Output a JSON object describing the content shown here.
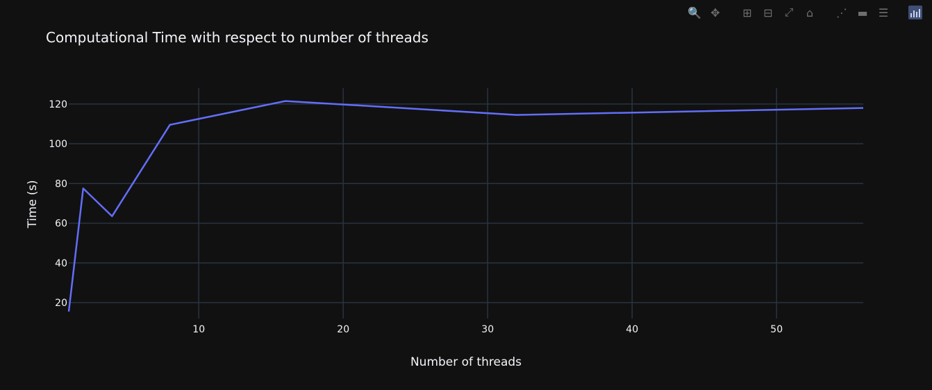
{
  "title": "Computational Time with respect to number of threads",
  "modebar": {
    "buttons": [
      {
        "name": "zoom-icon",
        "glyph": "🔍"
      },
      {
        "name": "pan-icon",
        "glyph": "✥"
      },
      {
        "name": "zoom-in-icon",
        "glyph": "⊞"
      },
      {
        "name": "zoom-out-icon",
        "glyph": "⊟"
      },
      {
        "name": "autoscale-icon",
        "glyph": "⤢"
      },
      {
        "name": "reset-axes-icon",
        "glyph": "⌂"
      },
      {
        "name": "spike-lines-icon",
        "glyph": "⋰"
      },
      {
        "name": "hover-closest-icon",
        "glyph": "▬"
      },
      {
        "name": "hover-compare-icon",
        "glyph": "☰"
      },
      {
        "name": "plotly-logo-icon",
        "glyph": ""
      }
    ]
  },
  "colors": {
    "background": "#111111",
    "grid": "#283442",
    "line": "#636efa",
    "text": "#f2f5fa"
  },
  "chart_data": {
    "type": "line",
    "title": "Computational Time with respect to number of threads",
    "xlabel": "Number of threads",
    "ylabel": "Time (s)",
    "x": [
      1,
      2,
      4,
      8,
      16,
      32,
      56
    ],
    "y": [
      15.5,
      77.5,
      63.5,
      109.5,
      121.5,
      114.5,
      118
    ],
    "xlim": [
      1,
      56
    ],
    "ylim": [
      12,
      128
    ],
    "xticks": [
      10,
      20,
      30,
      40,
      50
    ],
    "yticks": [
      20,
      40,
      60,
      80,
      100,
      120
    ],
    "grid": true,
    "legend": false
  }
}
